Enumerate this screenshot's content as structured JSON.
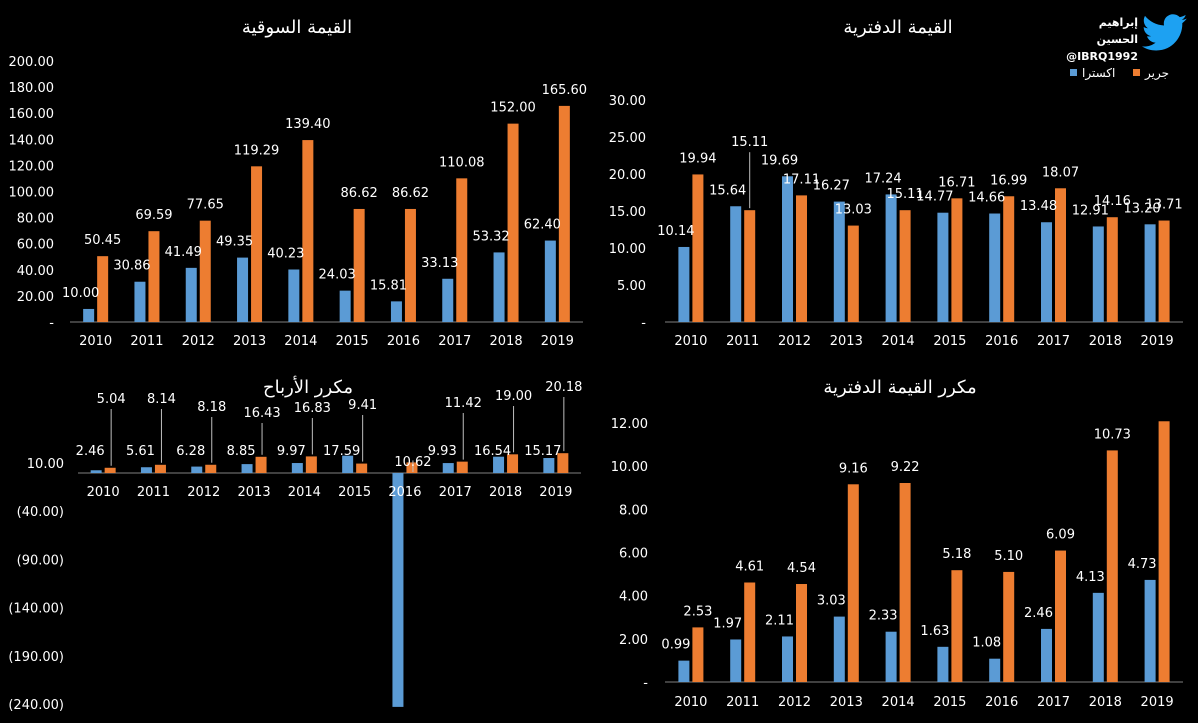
{
  "brand": {
    "name": "إبراهيم الحسين",
    "handle": "@IBRQ1992",
    "icon": "twitter-bird-icon",
    "icon_color": "#1da1f2"
  },
  "colors": {
    "series_a": "#5b9bd5",
    "series_b": "#ed7d31",
    "background": "#000000",
    "text": "#ffffff",
    "axis": "#7f7f7f"
  },
  "legend": [
    {
      "name": "اكسترا",
      "color": "#5b9bd5"
    },
    {
      "name": "جرير",
      "color": "#ed7d31"
    }
  ],
  "chart_data": [
    {
      "id": "market-value",
      "type": "bar",
      "title": "القيمة السوقية",
      "categories": [
        "2010",
        "2011",
        "2012",
        "2013",
        "2014",
        "2015",
        "2016",
        "2017",
        "2018",
        "2019"
      ],
      "series": [
        {
          "name": "اكسترا",
          "values": [
            10.0,
            30.86,
            41.49,
            49.35,
            40.23,
            24.03,
            15.81,
            33.13,
            53.32,
            62.4
          ],
          "labels": [
            "10.00",
            "30.86",
            "41.49",
            "49.35",
            "40.23",
            "24.03",
            "15.81",
            "33.13",
            "53.32",
            "62.40"
          ]
        },
        {
          "name": "جرير",
          "values": [
            50.45,
            69.59,
            77.65,
            119.29,
            139.4,
            86.62,
            86.62,
            110.08,
            152.0,
            165.6
          ],
          "labels": [
            "50.45",
            "69.59",
            "77.65",
            "119.29",
            "139.40",
            "86.62",
            "86.62",
            "110.08",
            "152.00",
            "165.60"
          ]
        }
      ],
      "ylim": [
        0,
        200
      ],
      "yticks": [
        0,
        20,
        40,
        60,
        80,
        100,
        120,
        140,
        160,
        180,
        200
      ],
      "ytick_labels": [
        "-",
        "20.00",
        "40.00",
        "60.00",
        "80.00",
        "100.00",
        "120.00",
        "140.00",
        "160.00",
        "180.00",
        "200.00"
      ],
      "xlabel": "",
      "ylabel": ""
    },
    {
      "id": "book-value",
      "type": "bar",
      "title": "القيمة الدفترية",
      "categories": [
        "2010",
        "2011",
        "2012",
        "2013",
        "2014",
        "2015",
        "2016",
        "2017",
        "2018",
        "2019"
      ],
      "series": [
        {
          "name": "اكسترا",
          "values": [
            10.14,
            15.64,
            19.69,
            16.27,
            17.24,
            14.77,
            14.66,
            13.48,
            12.91,
            13.2
          ],
          "labels": [
            "10.14",
            "15.64",
            "19.69",
            "16.27",
            "17.24",
            "14.77",
            "14.66",
            "13.48",
            "12.91",
            "13.20"
          ]
        },
        {
          "name": "جرير",
          "values": [
            19.94,
            15.11,
            17.11,
            13.03,
            15.11,
            16.71,
            16.99,
            18.07,
            14.16,
            13.71
          ],
          "labels": [
            "19.94",
            "15.11",
            "17.11",
            "13.03",
            "15.11",
            "16.71",
            "16.99",
            "18.07",
            "14.16",
            "13.71"
          ]
        }
      ],
      "ylim": [
        0,
        30
      ],
      "yticks": [
        0,
        5,
        10,
        15,
        20,
        25,
        30
      ],
      "ytick_labels": [
        "-",
        "5.00",
        "10.00",
        "15.00",
        "20.00",
        "25.00",
        "30.00"
      ],
      "legend": "top-right",
      "xlabel": "",
      "ylabel": ""
    },
    {
      "id": "pe-ratio",
      "type": "bar",
      "title": "مكرر الأرباح",
      "categories": [
        "2010",
        "2011",
        "2012",
        "2013",
        "2014",
        "2015",
        "2016",
        "2017",
        "2018",
        "2019"
      ],
      "series": [
        {
          "name": "اكسترا",
          "values": [
            2.46,
            5.61,
            6.28,
            8.85,
            9.97,
            17.59,
            -243,
            9.93,
            16.54,
            15.17
          ],
          "labels": [
            "2.46",
            "5.61",
            "6.28",
            "8.85",
            "9.97",
            "17.59",
            "",
            "9.93",
            "16.54",
            "15.17"
          ]
        },
        {
          "name": "جرير",
          "values": [
            5.04,
            8.14,
            8.18,
            16.43,
            16.83,
            9.41,
            10.62,
            11.42,
            19.0,
            20.18
          ],
          "labels": [
            "5.04",
            "8.14",
            "8.18",
            "16.43",
            "16.83",
            "9.41",
            "10.62",
            "11.42",
            "19.00",
            "20.18"
          ]
        }
      ],
      "ylim": [
        -240,
        10
      ],
      "yticks": [
        10,
        -40,
        -90,
        -140,
        -190,
        -240
      ],
      "ytick_labels": [
        "10.00",
        "(40.00)",
        "(90.00)",
        "(140.00)",
        "(190.00)",
        "(240.00)"
      ],
      "xlabel": "",
      "ylabel": ""
    },
    {
      "id": "pb-ratio",
      "type": "bar",
      "title": "مكرر القيمة الدفترية",
      "categories": [
        "2010",
        "2011",
        "2012",
        "2013",
        "2014",
        "2015",
        "2016",
        "2017",
        "2018",
        "2019"
      ],
      "series": [
        {
          "name": "اكسترا",
          "values": [
            0.99,
            1.97,
            2.11,
            3.03,
            2.33,
            1.63,
            1.08,
            2.46,
            4.13,
            4.73
          ],
          "labels": [
            "0.99",
            "1.97",
            "2.11",
            "3.03",
            "2.33",
            "1.63",
            "1.08",
            "2.46",
            "4.13",
            "4.73"
          ]
        },
        {
          "name": "جرير",
          "values": [
            2.53,
            4.61,
            4.54,
            9.16,
            9.22,
            5.18,
            5.1,
            6.09,
            10.73,
            12.08
          ],
          "labels": [
            "2.53",
            "4.61",
            "4.54",
            "9.16",
            "9.22",
            "5.18",
            "5.10",
            "6.09",
            "10.73",
            ""
          ]
        }
      ],
      "ylim": [
        0,
        12
      ],
      "yticks": [
        0,
        2,
        4,
        6,
        8,
        10,
        12
      ],
      "ytick_labels": [
        "-",
        "2.00",
        "4.00",
        "6.00",
        "8.00",
        "10.00",
        "12.00"
      ],
      "xlabel": "",
      "ylabel": ""
    }
  ]
}
